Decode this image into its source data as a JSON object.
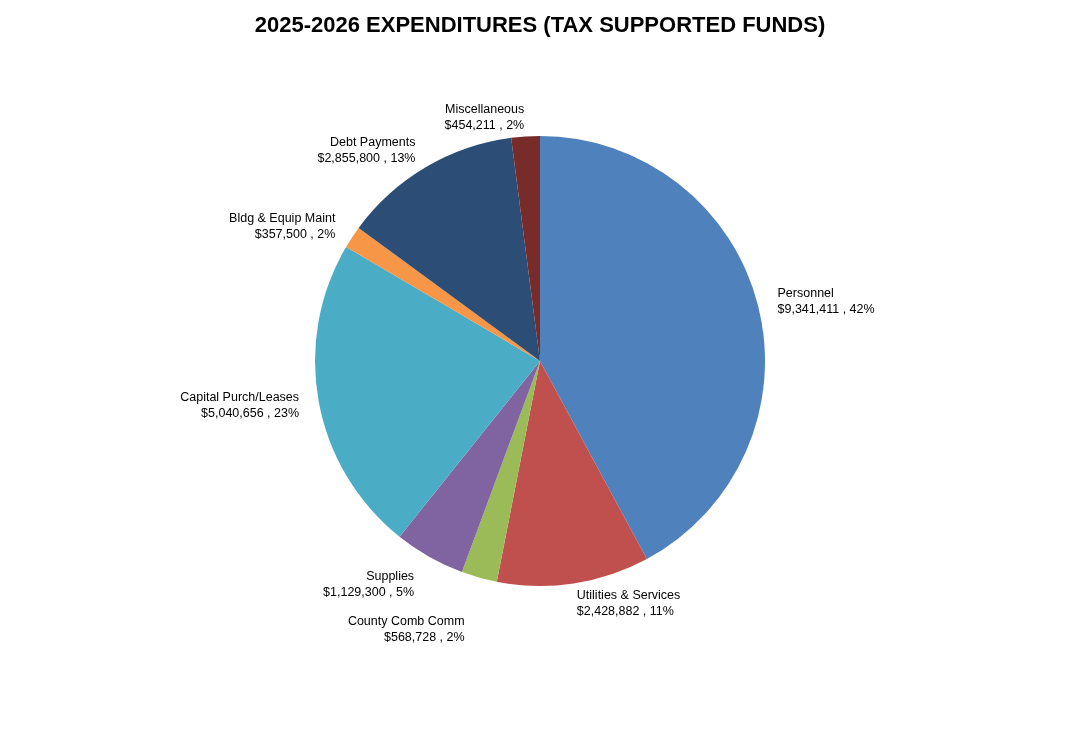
{
  "chart_data": {
    "type": "pie",
    "title": "2025-2026 EXPENDITURES (TAX SUPPORTED FUNDS)",
    "categories": [
      "Personnel",
      "Utilities & Services",
      "County Comb Comm",
      "Supplies",
      "Capital Purch/Leases",
      "Bldg & Equip Maint",
      "Debt Payments",
      "Miscellaneous"
    ],
    "values": [
      9341411,
      2428882,
      568728,
      1129300,
      5040656,
      357500,
      2855800,
      454211
    ],
    "value_labels": [
      "$9,341,411 , 42%",
      "$2,428,882 , 11%",
      "$568,728 , 2%",
      "$1,129,300 , 5%",
      "$5,040,656 , 23%",
      "$357,500 , 2%",
      "$2,855,800 , 13%",
      "$454,211 , 2%"
    ],
    "colors": [
      "#4f81bd",
      "#c0504d",
      "#9bbb59",
      "#8064a2",
      "#4bacc6",
      "#f79646",
      "#2c4d75",
      "#772c2a"
    ],
    "legend": false
  }
}
